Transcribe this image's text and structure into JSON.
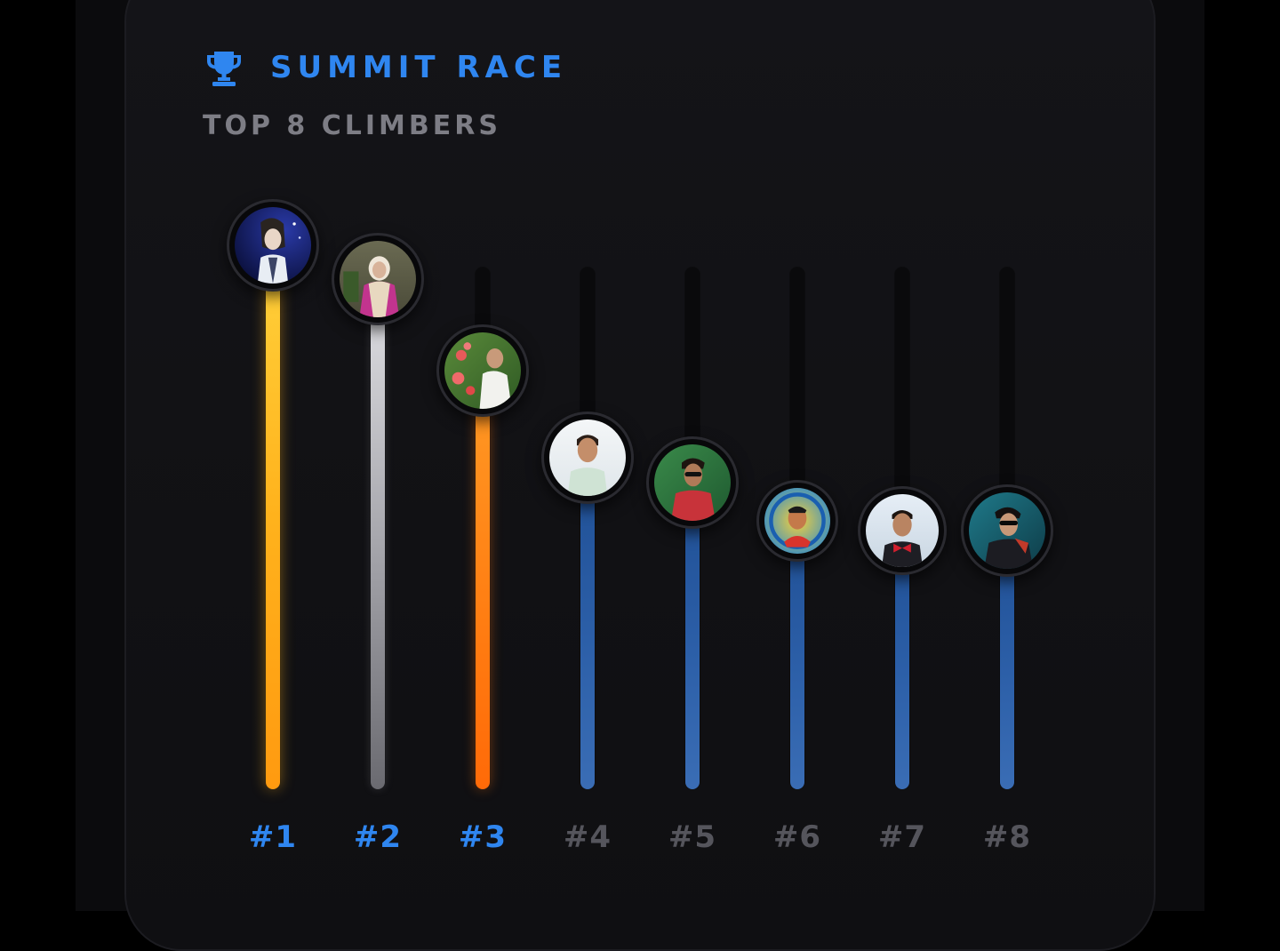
{
  "header": {
    "title": "SUMMIT RACE",
    "subtitle": "TOP 8 CLIMBERS",
    "icon": "trophy-icon"
  },
  "colors": {
    "accent": "#2f86f0",
    "gold": "#ffb21c",
    "silver": "#b4b4ba",
    "bronze": "#ff7d12",
    "blue": "#2c5fa8",
    "muted_rank": "#55555c"
  },
  "climbers": [
    {
      "rank": "#1",
      "progress": 1.0,
      "avatar": "climber-1-avatar"
    },
    {
      "rank": "#2",
      "progress": 0.93,
      "avatar": "climber-2-avatar"
    },
    {
      "rank": "#3",
      "progress": 0.74,
      "avatar": "climber-3-avatar"
    },
    {
      "rank": "#4",
      "progress": 0.56,
      "avatar": "climber-4-avatar"
    },
    {
      "rank": "#5",
      "progress": 0.51,
      "avatar": "climber-5-avatar"
    },
    {
      "rank": "#6",
      "progress": 0.43,
      "avatar": "climber-6-avatar"
    },
    {
      "rank": "#7",
      "progress": 0.41,
      "avatar": "climber-7-avatar"
    },
    {
      "rank": "#8",
      "progress": 0.41,
      "avatar": "climber-8-avatar"
    }
  ]
}
